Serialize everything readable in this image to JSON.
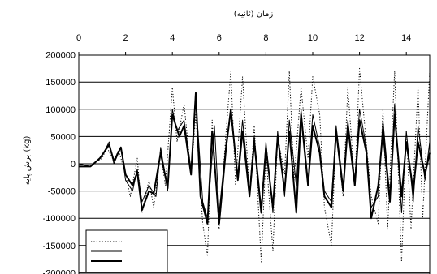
{
  "chart_data": {
    "type": "line",
    "xlabel": "زمان (ثانیه)",
    "ylabel": "برش پایه (kg)",
    "xlim": [
      0,
      15
    ],
    "ylim": [
      -200000,
      200000
    ],
    "x_ticks": [
      0,
      2,
      4,
      6,
      8,
      10,
      12,
      14
    ],
    "y_ticks": [
      200000,
      150000,
      100000,
      50000,
      0,
      -50000,
      -100000,
      -150000,
      -200000
    ],
    "x_axis_position": "top",
    "grid": "horizontal",
    "legend": {
      "position": "bottom-left",
      "entries": [
        "",
        "",
        ""
      ]
    },
    "series": [
      {
        "style": "dotted",
        "x": [
          0.0,
          0.5,
          1.0,
          1.2,
          1.5,
          1.7,
          2.0,
          2.2,
          2.5,
          2.7,
          3.0,
          3.2,
          3.5,
          3.7,
          4.0,
          4.2,
          4.5,
          4.8,
          5.0,
          5.3,
          5.5,
          5.7,
          6.0,
          6.3,
          6.5,
          6.7,
          7.0,
          7.3,
          7.5,
          7.8,
          8.0,
          8.3,
          8.5,
          8.8,
          9.0,
          9.2,
          9.5,
          9.8,
          10.0,
          10.3,
          10.5,
          10.8,
          11.0,
          11.3,
          11.5,
          11.8,
          12.0,
          12.2,
          12.5,
          12.8,
          13.0,
          13.2,
          13.5,
          13.8,
          14.0,
          14.2,
          14.5,
          14.7,
          15.0
        ],
        "y": [
          0,
          -5000,
          10000,
          30000,
          5000,
          25000,
          -20000,
          -60000,
          10000,
          -90000,
          -30000,
          -80000,
          20000,
          -40000,
          140000,
          40000,
          110000,
          -20000,
          90000,
          -110000,
          -170000,
          80000,
          -120000,
          60000,
          170000,
          -40000,
          160000,
          -60000,
          70000,
          -180000,
          20000,
          -160000,
          50000,
          -20000,
          170000,
          -30000,
          140000,
          10000,
          160000,
          90000,
          -80000,
          -150000,
          60000,
          -60000,
          140000,
          -40000,
          175000,
          80000,
          -60000,
          -110000,
          100000,
          -120000,
          170000,
          -180000,
          60000,
          -120000,
          140000,
          -100000,
          170000
        ]
      },
      {
        "style": "thin-solid",
        "x": [
          0.0,
          0.5,
          1.0,
          1.3,
          1.5,
          1.8,
          2.0,
          2.3,
          2.5,
          2.7,
          3.0,
          3.3,
          3.5,
          3.8,
          4.0,
          4.2,
          4.5,
          4.8,
          5.0,
          5.3,
          5.5,
          5.8,
          6.0,
          6.3,
          6.5,
          6.8,
          7.0,
          7.3,
          7.5,
          7.8,
          8.0,
          8.3,
          8.5,
          8.8,
          9.0,
          9.3,
          9.5,
          9.8,
          10.0,
          10.3,
          10.5,
          10.8,
          11.0,
          11.3,
          11.5,
          11.8,
          12.0,
          12.3,
          12.5,
          12.8,
          13.0,
          13.3,
          13.5,
          13.8,
          14.0,
          14.3,
          14.5,
          14.8,
          15.0
        ],
        "y": [
          0,
          -5000,
          15000,
          40000,
          0,
          30000,
          -30000,
          -50000,
          -10000,
          -70000,
          -40000,
          -60000,
          30000,
          -50000,
          100000,
          60000,
          80000,
          -10000,
          120000,
          -70000,
          -100000,
          70000,
          -90000,
          40000,
          90000,
          -20000,
          80000,
          -50000,
          50000,
          -80000,
          40000,
          -90000,
          60000,
          -60000,
          80000,
          -40000,
          100000,
          -30000,
          90000,
          30000,
          -50000,
          -70000,
          70000,
          -40000,
          80000,
          -30000,
          100000,
          30000,
          -80000,
          -60000,
          80000,
          -60000,
          110000,
          -90000,
          60000,
          -70000,
          70000,
          -30000,
          40000
        ]
      },
      {
        "style": "thick-solid",
        "x": [
          0.0,
          0.5,
          0.9,
          1.3,
          1.5,
          1.8,
          2.0,
          2.3,
          2.5,
          2.7,
          3.0,
          3.2,
          3.5,
          3.8,
          4.0,
          4.3,
          4.5,
          4.8,
          5.0,
          5.2,
          5.5,
          5.7,
          6.0,
          6.3,
          6.5,
          6.8,
          7.0,
          7.3,
          7.5,
          7.8,
          8.0,
          8.3,
          8.5,
          8.8,
          9.0,
          9.3,
          9.5,
          9.8,
          10.0,
          10.3,
          10.5,
          10.8,
          11.0,
          11.3,
          11.5,
          11.8,
          12.0,
          12.3,
          12.5,
          12.8,
          13.0,
          13.3,
          13.5,
          13.8,
          14.0,
          14.3,
          14.5,
          14.8,
          15.0
        ],
        "y": [
          -5000,
          -5000,
          10000,
          35000,
          5000,
          30000,
          -20000,
          -40000,
          -15000,
          -85000,
          -50000,
          -55000,
          20000,
          -45000,
          90000,
          50000,
          70000,
          -20000,
          130000,
          -60000,
          -110000,
          60000,
          -110000,
          30000,
          100000,
          -30000,
          60000,
          -60000,
          40000,
          -90000,
          30000,
          -80000,
          50000,
          -50000,
          60000,
          -90000,
          90000,
          -40000,
          70000,
          20000,
          -60000,
          -80000,
          60000,
          -50000,
          70000,
          -40000,
          80000,
          20000,
          -100000,
          -40000,
          60000,
          -70000,
          90000,
          -60000,
          40000,
          -50000,
          40000,
          -20000,
          20000
        ]
      }
    ]
  }
}
